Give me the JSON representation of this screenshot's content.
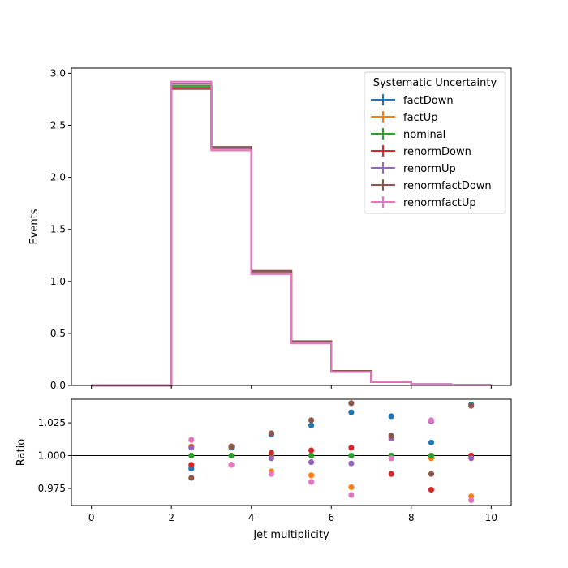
{
  "chart_data": [
    {
      "type": "line",
      "ylabel": "Events",
      "xlim": [
        -0.5,
        10.5
      ],
      "ylim": [
        0.0,
        3.05
      ],
      "x_ticks": [
        0,
        2,
        4,
        6,
        8,
        10
      ],
      "y_ticks": [
        0.0,
        0.5,
        1.0,
        1.5,
        2.0,
        2.5,
        3.0
      ],
      "y_tick_labels": [
        "0.0",
        "0.5",
        "1.0",
        "1.5",
        "2.0",
        "2.5",
        "3.0"
      ],
      "grid": false,
      "bin_edges": [
        0,
        1,
        2,
        3,
        4,
        5,
        6,
        7,
        8,
        9,
        10
      ],
      "legend": {
        "title": "Systematic Uncertainty",
        "placement": "top-right"
      },
      "series": [
        {
          "name": "factDown",
          "color": "#1f77b4",
          "values": [
            0,
            0,
            2.86,
            2.29,
            1.1,
            0.42,
            0.14,
            0.035,
            0.012,
            0.006
          ]
        },
        {
          "name": "factUp",
          "color": "#ff7f0e",
          "values": [
            0,
            0,
            2.9,
            2.26,
            1.08,
            0.41,
            0.13,
            0.034,
            0.011,
            0.006
          ]
        },
        {
          "name": "nominal",
          "color": "#2ca02c",
          "values": [
            0,
            0,
            2.88,
            2.28,
            1.09,
            0.415,
            0.135,
            0.035,
            0.0115,
            0.006
          ]
        },
        {
          "name": "renormDown",
          "color": "#d62728",
          "values": [
            0,
            0,
            2.86,
            2.28,
            1.1,
            0.42,
            0.14,
            0.034,
            0.011,
            0.006
          ]
        },
        {
          "name": "renormUp",
          "color": "#9467bd",
          "values": [
            0,
            0,
            2.9,
            2.28,
            1.09,
            0.41,
            0.13,
            0.035,
            0.0115,
            0.006
          ]
        },
        {
          "name": "renormfactDown",
          "color": "#8c564b",
          "values": [
            0,
            0,
            2.85,
            2.29,
            1.1,
            0.425,
            0.14,
            0.035,
            0.011,
            0.006
          ]
        },
        {
          "name": "renormfactUp",
          "color": "#e377c2",
          "values": [
            0,
            0,
            2.92,
            2.26,
            1.07,
            0.405,
            0.13,
            0.034,
            0.012,
            0.006
          ]
        }
      ]
    },
    {
      "type": "scatter",
      "xlabel": "Jet multiplicity",
      "ylabel": "Ratio",
      "xlim": [
        -0.5,
        10.5
      ],
      "ylim": [
        0.962,
        1.043
      ],
      "x_ticks": [
        0,
        2,
        4,
        6,
        8,
        10
      ],
      "x_tick_labels": [
        "0",
        "2",
        "4",
        "6",
        "8",
        "10"
      ],
      "y_ticks": [
        0.975,
        1.0,
        1.025
      ],
      "y_tick_labels": [
        "0.975",
        "1.000",
        "1.025"
      ],
      "reference_line": 1.0,
      "grid": false,
      "x": [
        2.5,
        3.5,
        4.5,
        5.5,
        6.5,
        7.5,
        8.5,
        9.5
      ],
      "series": [
        {
          "name": "factDown",
          "color": "#1f77b4",
          "values": [
            0.99,
            1.006,
            1.016,
            1.023,
            1.033,
            1.03,
            1.01,
            1.039
          ]
        },
        {
          "name": "factUp",
          "color": "#ff7f0e",
          "values": [
            1.007,
            0.993,
            0.988,
            0.985,
            0.976,
            0.998,
            0.998,
            0.969
          ]
        },
        {
          "name": "nominal",
          "color": "#2ca02c",
          "values": [
            1.0,
            1.0,
            1.0,
            1.0,
            1.0,
            1.0,
            1.0,
            1.0
          ]
        },
        {
          "name": "renormDown",
          "color": "#d62728",
          "values": [
            0.993,
            1.007,
            1.002,
            1.004,
            1.006,
            0.986,
            0.974,
            1.0
          ]
        },
        {
          "name": "renormUp",
          "color": "#9467bd",
          "values": [
            1.006,
            0.993,
            0.998,
            0.995,
            0.994,
            1.013,
            1.026,
            0.998
          ]
        },
        {
          "name": "renormfactDown",
          "color": "#8c564b",
          "values": [
            0.983,
            1.007,
            1.017,
            1.027,
            1.04,
            1.015,
            0.986,
            1.038
          ]
        },
        {
          "name": "renormfactUp",
          "color": "#e377c2",
          "values": [
            1.012,
            0.993,
            0.986,
            0.98,
            0.97,
            0.998,
            1.027,
            0.966
          ]
        }
      ]
    }
  ]
}
